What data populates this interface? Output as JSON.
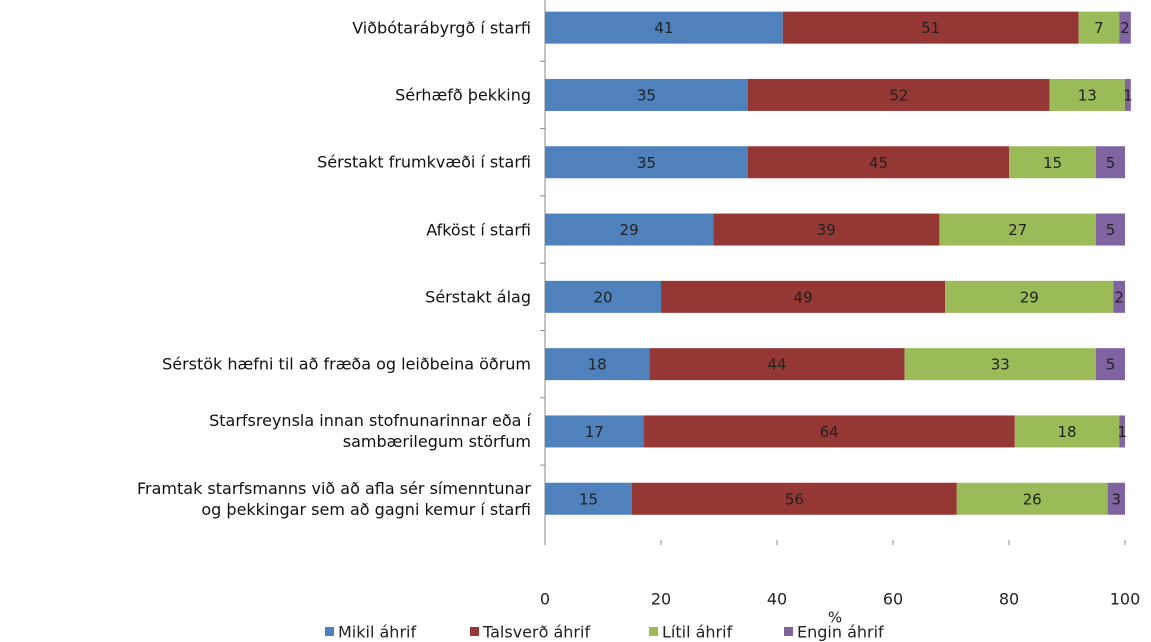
{
  "chart_data": {
    "type": "stacked_bar_horizontal",
    "categories": [
      "Viðbótarábyrgð í starfi",
      "Sérhæfð þekking",
      "Sérstakt frumkvæði í starfi",
      "Afköst í starfi",
      "Sérstakt álag",
      "Sérstök hæfni til að fræða og leiðbeina öðrum",
      "Starfsreynsla innan stofnunarinnar eða í\nsambærilegum störfum",
      "Framtak starfsmanns við að afla sér símenntunar\nog þekkingar sem að gagni kemur í starfi"
    ],
    "series": [
      {
        "name": "Mikil áhrif",
        "color": "#4f81bd",
        "values": [
          41,
          35,
          35,
          29,
          20,
          18,
          17,
          15
        ]
      },
      {
        "name": "Talsverð áhrif",
        "color": "#953735",
        "values": [
          51,
          52,
          45,
          39,
          49,
          44,
          64,
          56
        ]
      },
      {
        "name": "Lítil áhrif",
        "color": "#9bbb59",
        "values": [
          7,
          13,
          15,
          27,
          29,
          33,
          18,
          26
        ]
      },
      {
        "name": "Engin áhrif",
        "color": "#8064a2",
        "values": [
          2,
          1,
          5,
          5,
          2,
          5,
          1,
          3
        ]
      }
    ],
    "xlim": [
      0,
      100
    ],
    "xticks": [
      0,
      20,
      40,
      60,
      80,
      100
    ],
    "xlabel": "%",
    "legend": "bottom"
  }
}
